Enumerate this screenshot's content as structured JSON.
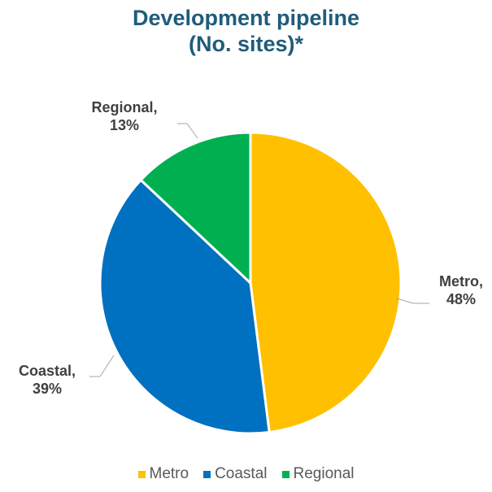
{
  "chart_data": {
    "type": "pie",
    "title": [
      "Development pipeline",
      "(No. sites)*"
    ],
    "slices": [
      {
        "label": "Metro",
        "value": 48,
        "color": "#ffc000",
        "data_label": [
          "Metro,",
          "48%"
        ]
      },
      {
        "label": "Coastal",
        "value": 39,
        "color": "#0070c0",
        "data_label": [
          "Coastal,",
          "39%"
        ]
      },
      {
        "label": "Regional",
        "value": 13,
        "color": "#00b050",
        "data_label": [
          "Regional,",
          "13%"
        ]
      }
    ],
    "legend": {
      "placement": "bottom",
      "entries": [
        "Metro",
        "Coastal",
        "Regional"
      ]
    }
  }
}
